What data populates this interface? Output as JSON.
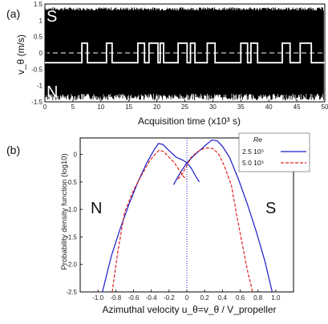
{
  "panels": {
    "a": "(a)",
    "b": "(b)"
  },
  "chart_data": [
    {
      "type": "line",
      "panel": "(a)",
      "xlabel": "Acquisition time (x10³ s)",
      "ylabel": "v_θ (m/s)",
      "xlim": [
        0,
        50
      ],
      "ylim": [
        -1.5,
        1.5
      ],
      "xticks": [
        0,
        5,
        10,
        15,
        20,
        25,
        30,
        35,
        40,
        45,
        50
      ],
      "yticks": [
        "-1.5",
        "-1",
        "-0.5",
        "0",
        "0.5",
        "1",
        "1.5"
      ],
      "corner_labels": {
        "top": "S",
        "bottom": "N"
      },
      "zero_line": {
        "y": 0,
        "style": "dashed",
        "color": "#ffffff"
      },
      "raw_signal": {
        "color": "#000000",
        "upper_envelope": [
          1.3,
          1.4
        ],
        "lower_envelope": [
          -1.25,
          -1.45
        ]
      },
      "filtered_signal": {
        "color": "#ffffff",
        "levels": [
          -0.3,
          0.3
        ],
        "switch_times": [
          0,
          6.6,
          7.6,
          11.0,
          12.0,
          16.6,
          17.8,
          18.6,
          20.2,
          20.6,
          21.2,
          23.8,
          25.4,
          26.0,
          26.8,
          29.0,
          30.4,
          35.0,
          36.2,
          36.8,
          38.0,
          42.4,
          43.8,
          45.6,
          47.6
        ],
        "start_level": -0.3
      }
    },
    {
      "type": "line",
      "panel": "(b)",
      "xlabel": "Azimuthal velocity u_θ=v_θ / V_propeller",
      "ylabel": "Probability density function (log10)",
      "xlim": [
        -1.2,
        1.2
      ],
      "ylim": [
        -2.5,
        0.3
      ],
      "xticks": [
        "-1.0",
        "-0.8",
        "-0.6",
        "-0.4",
        "-0.2",
        "0",
        "0.2",
        "0.4",
        "0.6",
        "0.8",
        "1.0"
      ],
      "yticks": [
        "0",
        "-0.5",
        "-1.0",
        "-1.5",
        "-2.0",
        "-2.5"
      ],
      "side_labels": {
        "left": "N",
        "right": "S"
      },
      "legend_title": "Re",
      "vertical_marker": {
        "x": 0,
        "style": "dotted",
        "color": "#1a1acc"
      },
      "series": [
        {
          "name": "2.5 10⁵",
          "color": "#1a1acc",
          "style": "solid",
          "curves": [
            {
              "x": [
                -0.95,
                -0.85,
                -0.75,
                -0.65,
                -0.55,
                -0.45,
                -0.38,
                -0.32,
                -0.27,
                -0.2,
                -0.12,
                -0.05,
                0.0,
                0.05,
                0.1,
                0.14
              ],
              "y": [
                -2.5,
                -1.85,
                -1.35,
                -0.9,
                -0.5,
                -0.15,
                0.05,
                0.2,
                0.18,
                0.07,
                -0.05,
                -0.1,
                -0.15,
                -0.25,
                -0.4,
                -0.5
              ]
            },
            {
              "x": [
                -0.15,
                -0.08,
                0.0,
                0.08,
                0.15,
                0.22,
                0.28,
                0.34,
                0.4,
                0.48,
                0.58,
                0.68,
                0.78,
                0.88,
                0.96
              ],
              "y": [
                -0.55,
                -0.35,
                -0.15,
                -0.02,
                0.08,
                0.18,
                0.26,
                0.25,
                0.15,
                -0.05,
                -0.45,
                -0.9,
                -1.4,
                -1.95,
                -2.5
              ]
            }
          ]
        },
        {
          "name": "5.0 10⁵",
          "color": "#e02020",
          "style": "dashed",
          "curves": [
            {
              "x": [
                -0.84,
                -0.78,
                -0.7,
                -0.6,
                -0.5,
                -0.42,
                -0.36,
                -0.31,
                -0.26,
                -0.2,
                -0.14,
                -0.08,
                -0.04,
                0.0
              ],
              "y": [
                -2.5,
                -1.8,
                -1.05,
                -0.65,
                -0.35,
                -0.12,
                0.0,
                0.08,
                0.05,
                -0.05,
                -0.15,
                -0.3,
                -0.4,
                -0.45
              ]
            },
            {
              "x": [
                -0.1,
                -0.05,
                0.0,
                0.05,
                0.12,
                0.18,
                0.24,
                0.3,
                0.36,
                0.42,
                0.5,
                0.56,
                0.62,
                0.68,
                0.74
              ],
              "y": [
                -0.45,
                -0.35,
                -0.2,
                -0.05,
                0.05,
                0.1,
                0.12,
                0.1,
                0.0,
                -0.2,
                -0.55,
                -1.1,
                -1.6,
                -2.1,
                -2.5
              ]
            }
          ]
        }
      ]
    }
  ]
}
